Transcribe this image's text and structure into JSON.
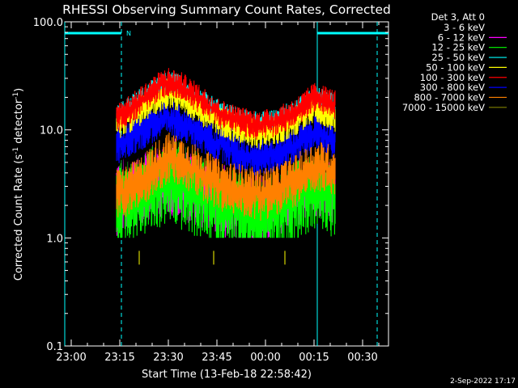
{
  "chart_data": {
    "type": "line",
    "title": "RHESSI Observing Summary Count Rates, Corrected",
    "xlabel": "Start Time (13-Feb-18 22:58:42)",
    "ylabel": "Corrected Count Rate (s⁻¹ detector⁻¹)",
    "ylabel_parts": [
      "Corrected Count Rate (s",
      "-1",
      " detector",
      "-1",
      ")"
    ],
    "yscale": "log",
    "ylim": [
      0.1,
      100.0
    ],
    "y_ticks": [
      {
        "value": 0.1,
        "label": "0.1"
      },
      {
        "value": 1.0,
        "label": "1.0"
      },
      {
        "value": 10.0,
        "label": "10.0"
      },
      {
        "value": 100.0,
        "label": "100.0"
      }
    ],
    "xlim": [
      "22:58",
      "00:38"
    ],
    "x_ticks": [
      "23:00",
      "23:15",
      "23:30",
      "23:45",
      "00:00",
      "00:15",
      "00:30"
    ],
    "x_tick_minutes": [
      0,
      15,
      30,
      45,
      60,
      75,
      90
    ],
    "x_minute_zero": "23:00",
    "x_limit_minutes": [
      -2,
      98
    ],
    "legend_title": "Det 3, Att 0",
    "legend_position": "right",
    "series": [
      {
        "name": "3 - 6 keV",
        "color": "#000000",
        "x_minutes": [
          14,
          20,
          26,
          30,
          34,
          40,
          46,
          52,
          58,
          64,
          70,
          75,
          78,
          81.5
        ],
        "values": [
          6,
          7,
          8.5,
          10,
          9,
          7.5,
          6,
          5,
          4.5,
          5,
          6,
          7.5,
          7,
          6.5
        ]
      },
      {
        "name": "6 - 12 keV",
        "color": "#ff00ff",
        "x_minutes": [
          14,
          20,
          26,
          30,
          34,
          40,
          46,
          52,
          58,
          64,
          70,
          75,
          78,
          81.5
        ],
        "values": [
          2.5,
          3,
          3.5,
          4,
          3.5,
          3,
          2.5,
          2,
          2,
          2.5,
          3,
          3.5,
          3.5,
          3
        ]
      },
      {
        "name": "12 - 25 keV",
        "color": "#00ff00",
        "x_minutes": [
          14,
          20,
          26,
          30,
          34,
          40,
          46,
          52,
          58,
          64,
          70,
          75,
          78,
          81.5
        ],
        "values": [
          2,
          2.5,
          3,
          3.5,
          3,
          2.5,
          2,
          1.8,
          1.5,
          1.8,
          2.5,
          3,
          3,
          2.5
        ]
      },
      {
        "name": "25 - 50 keV",
        "color": "#00ffff",
        "x_minutes": [
          14,
          20,
          26,
          30,
          34,
          40,
          46,
          52,
          58,
          64,
          70,
          75,
          78,
          81.5
        ],
        "values": [
          13,
          17,
          23,
          27,
          24,
          18,
          14,
          12,
          11,
          12,
          15,
          19,
          18,
          16
        ]
      },
      {
        "name": "50 - 100 keV",
        "color": "#ffff00",
        "x_minutes": [
          14,
          20,
          26,
          30,
          34,
          40,
          46,
          52,
          58,
          64,
          70,
          75,
          78,
          81.5
        ],
        "values": [
          11,
          14,
          19,
          22,
          20,
          15,
          12,
          10,
          9,
          10,
          12.5,
          16,
          15,
          13
        ]
      },
      {
        "name": "100 - 300 keV",
        "color": "#ff0000",
        "x_minutes": [
          14,
          20,
          26,
          30,
          34,
          40,
          46,
          52,
          58,
          64,
          70,
          75,
          78,
          81.5
        ],
        "values": [
          13,
          17,
          24,
          28,
          25,
          19,
          14,
          12,
          11,
          12,
          15,
          20,
          19,
          17
        ]
      },
      {
        "name": "300 - 800 keV",
        "color": "#0000ff",
        "x_minutes": [
          14,
          20,
          26,
          30,
          34,
          40,
          46,
          52,
          58,
          64,
          70,
          75,
          78,
          81.5
        ],
        "values": [
          7,
          9,
          11.5,
          13,
          11.5,
          9,
          7.5,
          6,
          5.5,
          6,
          7.5,
          9.5,
          9,
          8
        ]
      },
      {
        "name": "800 - 7000 keV",
        "color": "#ff8000",
        "x_minutes": [
          14,
          20,
          26,
          30,
          34,
          40,
          46,
          52,
          58,
          64,
          70,
          75,
          78,
          81.5
        ],
        "values": [
          2.5,
          3,
          4.5,
          5.5,
          5,
          4,
          3,
          2.8,
          2.5,
          2.8,
          3.5,
          4.5,
          4.5,
          4
        ]
      },
      {
        "name": "7000 - 15000 keV",
        "color": "#808000",
        "points": [
          {
            "x": 21,
            "y": 0.65
          },
          {
            "x": 44,
            "y": 0.65
          },
          {
            "x": 66,
            "y": 0.65
          }
        ]
      }
    ],
    "annotations": {
      "flag_label": "N",
      "saa_bars": [
        [
          -2,
          15.5
        ],
        [
          76,
          98
        ]
      ],
      "solid_lines": [
        -2,
        76
      ],
      "dashed_lines": [
        15.5,
        94.5
      ]
    }
  },
  "footer": {
    "date": "2-Sep-2022 17:17"
  }
}
